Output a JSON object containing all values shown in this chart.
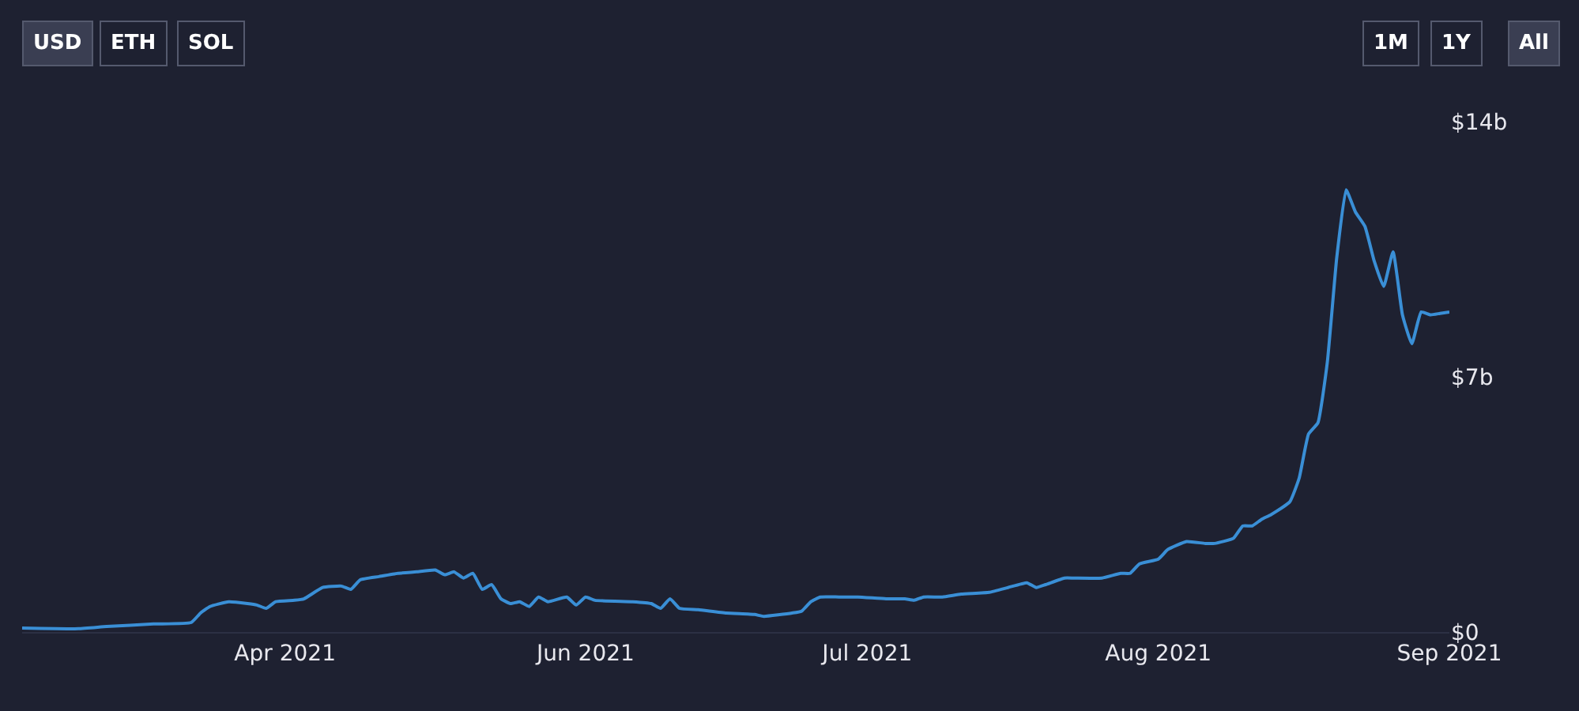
{
  "chart_data": {
    "type": "line",
    "annotations": [
      "USD",
      "ETH",
      "SOL",
      "1M",
      "1Y",
      "All"
    ],
    "x": [
      "2021-04-02",
      "2021-04-08",
      "2021-04-11",
      "2021-04-16",
      "2021-04-20",
      "2021-04-21",
      "2021-04-22",
      "2021-04-24",
      "2021-04-26",
      "2021-04-27",
      "2021-04-28",
      "2021-04-29",
      "2021-05-01",
      "2021-05-02",
      "2021-05-04",
      "2021-05-06",
      "2021-05-07",
      "2021-05-08",
      "2021-05-10",
      "2021-05-12",
      "2021-05-14",
      "2021-05-16",
      "2021-05-17",
      "2021-05-18",
      "2021-05-19",
      "2021-05-20",
      "2021-05-21",
      "2021-05-22",
      "2021-05-23",
      "2021-05-24",
      "2021-05-25",
      "2021-05-26",
      "2021-05-27",
      "2021-05-28",
      "2021-05-30",
      "2021-05-31",
      "2021-06-01",
      "2021-06-02",
      "2021-06-06",
      "2021-06-08",
      "2021-06-09",
      "2021-06-10",
      "2021-06-11",
      "2021-06-13",
      "2021-06-16",
      "2021-06-19",
      "2021-06-20",
      "2021-06-23",
      "2021-06-24",
      "2021-06-25",
      "2021-06-26",
      "2021-06-28",
      "2021-06-30",
      "2021-07-03",
      "2021-07-05",
      "2021-07-06",
      "2021-07-07",
      "2021-07-09",
      "2021-07-11",
      "2021-07-14",
      "2021-07-16",
      "2021-07-18",
      "2021-07-19",
      "2021-07-20",
      "2021-07-22",
      "2021-07-23",
      "2021-07-26",
      "2021-07-28",
      "2021-07-29",
      "2021-07-30",
      "2021-08-01",
      "2021-08-02",
      "2021-08-04",
      "2021-08-06",
      "2021-08-07",
      "2021-08-09",
      "2021-08-10",
      "2021-08-11",
      "2021-08-12",
      "2021-08-13",
      "2021-08-15",
      "2021-08-16",
      "2021-08-17",
      "2021-08-18",
      "2021-08-19",
      "2021-08-20",
      "2021-08-21",
      "2021-08-22",
      "2021-08-23",
      "2021-08-24",
      "2021-08-25",
      "2021-08-26",
      "2021-08-27",
      "2021-08-28",
      "2021-08-29",
      "2021-08-30",
      "2021-08-31",
      "2021-09-01"
    ],
    "series": [
      {
        "color": "#3a8fd6",
        "values": [
          0.11,
          0.09,
          0.15,
          0.22,
          0.26,
          0.52,
          0.7,
          0.83,
          0.78,
          0.74,
          0.65,
          0.83,
          0.87,
          0.91,
          1.22,
          1.26,
          1.17,
          1.43,
          1.52,
          1.61,
          1.65,
          1.7,
          1.57,
          1.65,
          1.48,
          1.61,
          1.17,
          1.3,
          0.91,
          0.78,
          0.83,
          0.7,
          0.96,
          0.83,
          0.96,
          0.74,
          0.96,
          0.87,
          0.83,
          0.78,
          0.65,
          0.91,
          0.65,
          0.61,
          0.52,
          0.48,
          0.43,
          0.52,
          0.57,
          0.83,
          0.96,
          0.96,
          0.96,
          0.91,
          0.91,
          0.87,
          0.96,
          0.96,
          1.04,
          1.09,
          1.22,
          1.35,
          1.22,
          1.3,
          1.48,
          1.48,
          1.48,
          1.61,
          1.61,
          1.87,
          2.0,
          2.26,
          2.48,
          2.43,
          2.43,
          2.57,
          2.91,
          2.91,
          3.09,
          3.22,
          3.57,
          4.22,
          5.43,
          5.74,
          7.4,
          10.26,
          12.13,
          11.52,
          11.13,
          10.17,
          9.48,
          10.43,
          8.7,
          7.91,
          8.78,
          8.7,
          8.74,
          8.78
        ]
      }
    ],
    "xlim": [
      "2021-04-02",
      "2021-09-01"
    ],
    "xticks": [
      {
        "value": "2021-04-30",
        "label": "Apr 2021"
      },
      {
        "value": "2021-06-01",
        "label": "Jun 2021"
      },
      {
        "value": "2021-07-01",
        "label": "Jul 2021"
      },
      {
        "value": "2021-08-01",
        "label": "Aug 2021"
      },
      {
        "value": "2021-09-01",
        "label": "Sep 2021"
      }
    ],
    "ylim": [
      0,
      14
    ],
    "yticks": [
      {
        "value": 0,
        "label": "$0"
      },
      {
        "value": 7,
        "label": "$7b"
      },
      {
        "value": 14,
        "label": "$14b"
      }
    ],
    "marker": "none",
    "line_style": "solid"
  }
}
